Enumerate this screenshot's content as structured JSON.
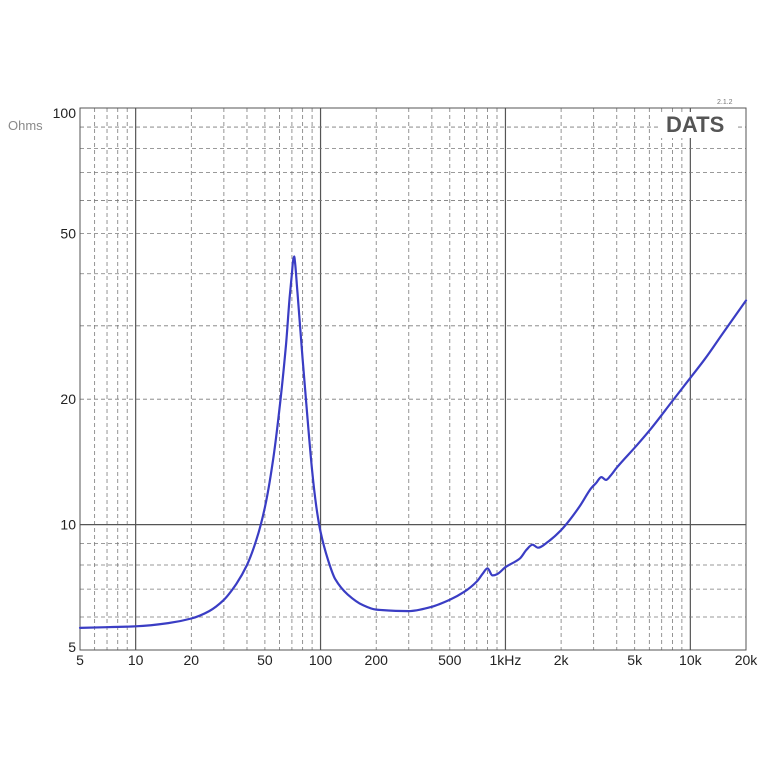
{
  "chart_data": {
    "type": "line",
    "title": "",
    "xlabel": "",
    "ylabel": "Ohms",
    "brand": "DATS",
    "version": "2.1.2",
    "x_scale": "log",
    "y_scale": "log",
    "xlim": [
      5,
      20000
    ],
    "ylim": [
      5,
      100
    ],
    "grid": true,
    "line_color": "#3a3dc4",
    "x_ticks": [
      {
        "value": 5,
        "label": "5"
      },
      {
        "value": 10,
        "label": "10"
      },
      {
        "value": 20,
        "label": "20"
      },
      {
        "value": 50,
        "label": "50"
      },
      {
        "value": 100,
        "label": "100"
      },
      {
        "value": 200,
        "label": "200"
      },
      {
        "value": 500,
        "label": "500"
      },
      {
        "value": 1000,
        "label": "1kHz"
      },
      {
        "value": 2000,
        "label": "2k"
      },
      {
        "value": 5000,
        "label": "5k"
      },
      {
        "value": 10000,
        "label": "10k"
      },
      {
        "value": 20000,
        "label": "20k"
      }
    ],
    "y_ticks": [
      {
        "value": 5,
        "label": "5"
      },
      {
        "value": 10,
        "label": "10"
      },
      {
        "value": 20,
        "label": "20"
      },
      {
        "value": 50,
        "label": "50"
      },
      {
        "value": 100,
        "label": "100"
      }
    ],
    "series": [
      {
        "points": [
          [
            5,
            5.65
          ],
          [
            7,
            5.67
          ],
          [
            10,
            5.7
          ],
          [
            15,
            5.8
          ],
          [
            20,
            5.95
          ],
          [
            25,
            6.2
          ],
          [
            30,
            6.6
          ],
          [
            35,
            7.2
          ],
          [
            40,
            8.0
          ],
          [
            45,
            9.2
          ],
          [
            50,
            11.0
          ],
          [
            55,
            14.0
          ],
          [
            60,
            19.0
          ],
          [
            65,
            27.0
          ],
          [
            68,
            35.0
          ],
          [
            70,
            40.0
          ],
          [
            71,
            43.0
          ],
          [
            72,
            44.0
          ],
          [
            73,
            42.0
          ],
          [
            75,
            36.0
          ],
          [
            80,
            25.0
          ],
          [
            85,
            18.0
          ],
          [
            90,
            13.5
          ],
          [
            95,
            11.0
          ],
          [
            100,
            9.6
          ],
          [
            110,
            8.2
          ],
          [
            120,
            7.4
          ],
          [
            140,
            6.8
          ],
          [
            170,
            6.4
          ],
          [
            200,
            6.25
          ],
          [
            300,
            6.2
          ],
          [
            400,
            6.35
          ],
          [
            500,
            6.6
          ],
          [
            600,
            6.9
          ],
          [
            700,
            7.3
          ],
          [
            750,
            7.6
          ],
          [
            800,
            7.85
          ],
          [
            850,
            7.55
          ],
          [
            900,
            7.6
          ],
          [
            1000,
            7.9
          ],
          [
            1200,
            8.3
          ],
          [
            1300,
            8.7
          ],
          [
            1400,
            8.95
          ],
          [
            1500,
            8.8
          ],
          [
            1700,
            9.1
          ],
          [
            2000,
            9.7
          ],
          [
            2500,
            11.0
          ],
          [
            2900,
            12.2
          ],
          [
            3100,
            12.6
          ],
          [
            3300,
            13.0
          ],
          [
            3500,
            12.8
          ],
          [
            3700,
            13.1
          ],
          [
            4000,
            13.7
          ],
          [
            5000,
            15.3
          ],
          [
            6000,
            16.8
          ],
          [
            8000,
            19.8
          ],
          [
            10000,
            22.5
          ],
          [
            12000,
            25.0
          ],
          [
            15000,
            28.8
          ],
          [
            20000,
            34.5
          ]
        ]
      }
    ]
  }
}
